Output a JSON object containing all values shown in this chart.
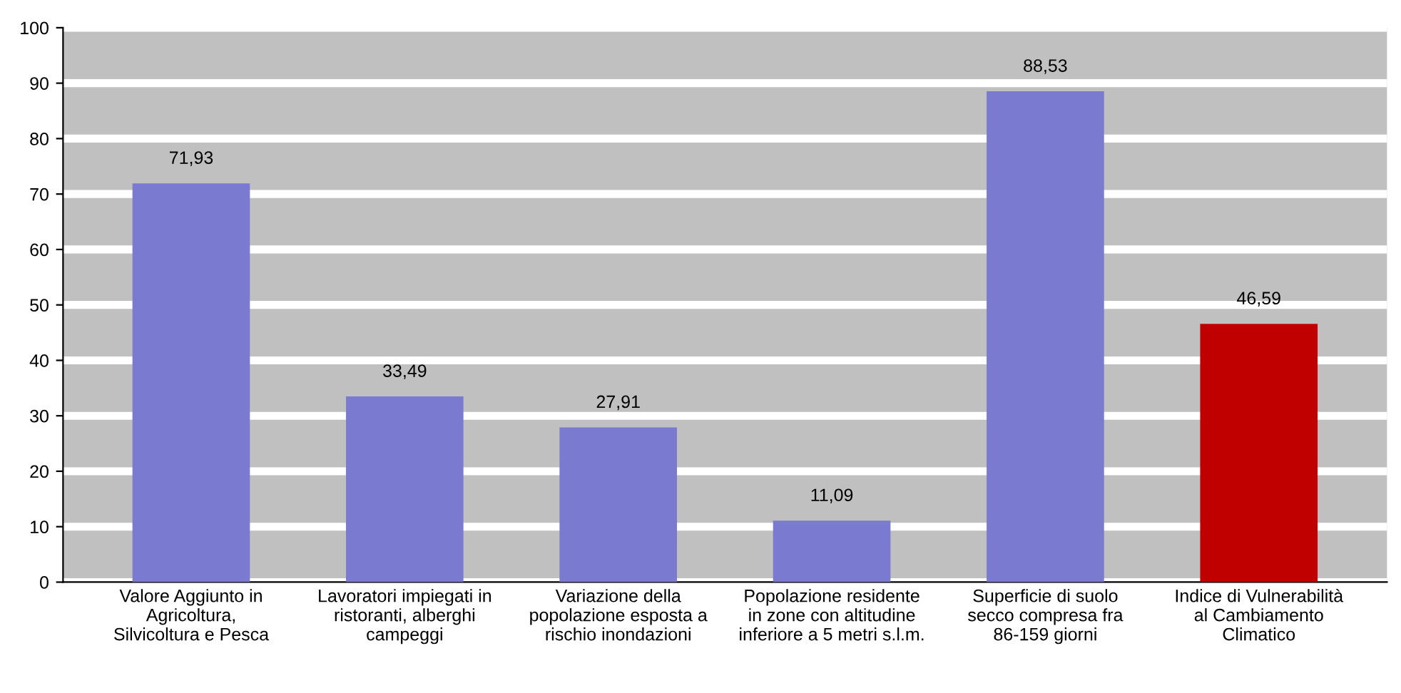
{
  "chart_data": {
    "type": "bar",
    "categories": [
      "Valore Aggiunto in\nAgricoltura,\nSilvicoltura e Pesca",
      "Lavoratori impiegati in\nristoranti, alberghi\ncampeggi",
      "Variazione della\npopolazione esposta a\nrischio inondazioni",
      "Popolazione residente\nin zone con altitudine\ninferiore a 5 metri s.l.m.",
      "Superficie di suolo\nsecco compresa fra\n86-159 giorni",
      "Indice di Vulnerabilità\nal Cambiamento\nClimatico"
    ],
    "values": [
      71.93,
      33.49,
      27.91,
      11.09,
      88.53,
      46.59
    ],
    "value_labels": [
      "71,93",
      "33,49",
      "27,91",
      "11,09",
      "88,53",
      "46,59"
    ],
    "colors": [
      "#7a7ad0",
      "#7a7ad0",
      "#7a7ad0",
      "#7a7ad0",
      "#7a7ad0",
      "#c00000"
    ],
    "ylim": [
      0,
      100
    ],
    "yticks": [
      0,
      10,
      20,
      30,
      40,
      50,
      60,
      70,
      80,
      90,
      100
    ],
    "grid": "y",
    "legend": false
  }
}
